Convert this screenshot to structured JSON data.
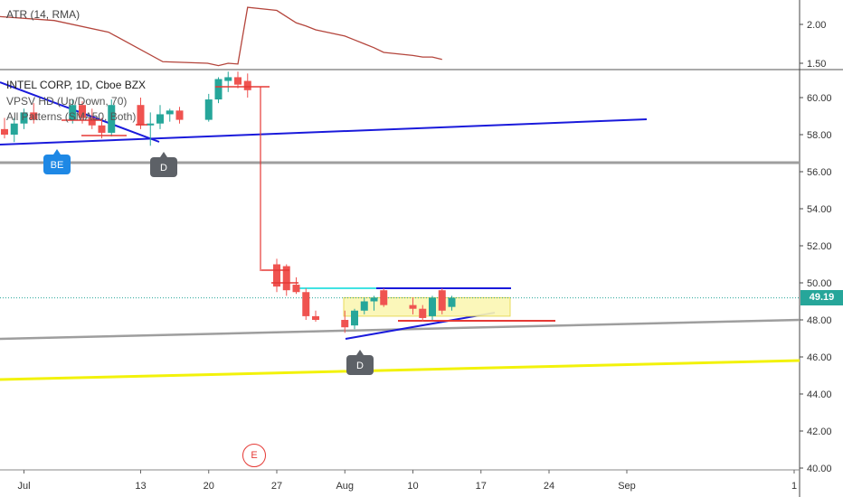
{
  "indicator": {
    "atr_label": "ATR (14, RMA)"
  },
  "legend": {
    "symbol": "INTEL CORP, 1D, Cboe BZX",
    "line2": "VPSV HD (Up/Down, 70)",
    "line3": "All Patterns (SMA50, Both)"
  },
  "price_tag": "49.19",
  "markers": {
    "be": "BE",
    "d1": "D",
    "d2": "D",
    "earnings": "E"
  },
  "colors": {
    "up": "#26a69a",
    "down": "#ef5350",
    "trend_blue": "#1a1adb",
    "support_gray": "#9e9e9e",
    "yellow": "#f2f20a",
    "cyan": "#41e3e3",
    "atr_line": "#b4453c"
  },
  "chart_data": [
    {
      "type": "line",
      "series": [
        {
          "name": "ATR (14, RMA)",
          "x": [
            "Jul 21",
            "Jul 22",
            "Jul 23",
            "Jul 24",
            "Jul 27",
            "Jul 28",
            "Jul 29",
            "Jul 30",
            "Jul 31",
            "Aug 3",
            "Aug 4",
            "Aug 5",
            "Aug 6",
            "Aug 7",
            "Aug 10",
            "Aug 11",
            "Aug 12",
            "Aug 13"
          ],
          "values": [
            1.47,
            1.5,
            1.49,
            2.22,
            2.18,
            2.1,
            2.02,
            1.98,
            1.93,
            1.85,
            1.8,
            1.75,
            1.7,
            1.64,
            1.6,
            1.58,
            1.58,
            1.55
          ]
        }
      ],
      "y_ticks": [
        1.5,
        2.0
      ],
      "y_tick_labels": [
        "1.50",
        "2.00"
      ]
    },
    {
      "type": "candlestick",
      "x_tick_labels": [
        "Jul",
        "13",
        "20",
        "27",
        "Aug",
        "10",
        "17",
        "24",
        "Sep",
        "1"
      ],
      "y_tick_labels": [
        "40.00",
        "42.00",
        "44.00",
        "46.00",
        "48.00",
        "50.00",
        "52.00",
        "54.00",
        "56.00",
        "58.00",
        "60.00"
      ],
      "ylim": [
        40,
        61.5
      ],
      "last_price": 49.19,
      "candles": [
        {
          "date": "Jun 29",
          "o": 58.3,
          "h": 58.9,
          "l": 57.8,
          "c": 58.0
        },
        {
          "date": "Jun 30",
          "o": 58.0,
          "h": 58.9,
          "l": 57.6,
          "c": 58.6
        },
        {
          "date": "Jul 1",
          "o": 58.6,
          "h": 59.4,
          "l": 58.3,
          "c": 59.2
        },
        {
          "date": "Jul 2",
          "o": 59.2,
          "h": 59.7,
          "l": 58.6,
          "c": 58.8
        },
        {
          "date": "Jul 6",
          "o": 58.8,
          "h": 59.9,
          "l": 58.6,
          "c": 59.6
        },
        {
          "date": "Jul 7",
          "o": 59.6,
          "h": 59.8,
          "l": 58.6,
          "c": 58.9
        },
        {
          "date": "Jul 8",
          "o": 58.9,
          "h": 59.4,
          "l": 58.3,
          "c": 58.5
        },
        {
          "date": "Jul 9",
          "o": 58.5,
          "h": 58.9,
          "l": 57.8,
          "c": 58.1
        },
        {
          "date": "Jul 10",
          "o": 58.1,
          "h": 59.9,
          "l": 57.9,
          "c": 59.6
        },
        {
          "date": "Jul 13",
          "o": 59.6,
          "h": 60.0,
          "l": 58.3,
          "c": 58.5
        },
        {
          "date": "Jul 14",
          "o": 58.5,
          "h": 59.2,
          "l": 57.4,
          "c": 58.6
        },
        {
          "date": "Jul 15",
          "o": 58.6,
          "h": 59.6,
          "l": 58.3,
          "c": 59.1
        },
        {
          "date": "Jul 16",
          "o": 59.1,
          "h": 59.4,
          "l": 58.7,
          "c": 59.3
        },
        {
          "date": "Jul 17",
          "o": 59.3,
          "h": 59.5,
          "l": 58.6,
          "c": 58.8
        },
        {
          "date": "Jul 20",
          "o": 58.8,
          "h": 60.2,
          "l": 58.7,
          "c": 59.9
        },
        {
          "date": "Jul 21",
          "o": 59.9,
          "h": 61.1,
          "l": 59.7,
          "c": 61.0
        },
        {
          "date": "Jul 22",
          "o": 60.9,
          "h": 61.4,
          "l": 60.3,
          "c": 61.1
        },
        {
          "date": "Jul 23",
          "o": 61.1,
          "h": 61.4,
          "l": 60.5,
          "c": 60.7
        },
        {
          "date": "Jul 24",
          "o": 60.9,
          "h": 61.3,
          "l": 60.0,
          "c": 60.4
        },
        {
          "date": "Jul 27",
          "o": 51.0,
          "h": 51.3,
          "l": 49.5,
          "c": 49.8
        },
        {
          "date": "Jul 28",
          "o": 50.9,
          "h": 51.0,
          "l": 49.3,
          "c": 49.6
        },
        {
          "date": "Jul 29",
          "o": 49.9,
          "h": 50.3,
          "l": 49.4,
          "c": 49.5
        },
        {
          "date": "Jul 30",
          "o": 49.5,
          "h": 49.7,
          "l": 48.0,
          "c": 48.2
        },
        {
          "date": "Jul 31",
          "o": 48.2,
          "h": 48.5,
          "l": 47.9,
          "c": 48.0
        },
        {
          "date": "Aug 3",
          "o": 48.0,
          "h": 48.5,
          "l": 47.3,
          "c": 47.6
        },
        {
          "date": "Aug 4",
          "o": 47.7,
          "h": 48.6,
          "l": 47.5,
          "c": 48.5
        },
        {
          "date": "Aug 5",
          "o": 48.5,
          "h": 49.2,
          "l": 48.3,
          "c": 49.0
        },
        {
          "date": "Aug 6",
          "o": 49.0,
          "h": 49.3,
          "l": 48.5,
          "c": 49.2
        },
        {
          "date": "Aug 7",
          "o": 49.6,
          "h": 49.7,
          "l": 48.7,
          "c": 48.8
        },
        {
          "date": "Aug 10",
          "o": 48.8,
          "h": 49.2,
          "l": 48.3,
          "c": 48.6
        },
        {
          "date": "Aug 11",
          "o": 48.6,
          "h": 48.8,
          "l": 47.9,
          "c": 48.1
        },
        {
          "date": "Aug 12",
          "o": 48.2,
          "h": 49.3,
          "l": 48.0,
          "c": 49.2
        },
        {
          "date": "Aug 13",
          "o": 49.6,
          "h": 49.7,
          "l": 48.3,
          "c": 48.5
        },
        {
          "date": "Aug 14",
          "o": 48.7,
          "h": 49.3,
          "l": 48.5,
          "c": 49.19
        }
      ]
    }
  ]
}
